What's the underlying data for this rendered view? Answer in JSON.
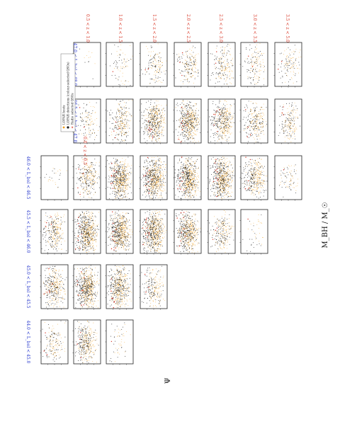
{
  "chart_data": {
    "type": "scatter",
    "title": "",
    "layout": "grid of scatter panels, rows by redshift bin, columns by bolometric luminosity bin; whole figure rotated 90 degrees",
    "ylabel": "M_BH / M_☉",
    "xlabel": "Ψ",
    "redshift_bins": [
      "0.0 < z < 0.5",
      "0.5 < z < 1.0",
      "1.0 < z < 1.5",
      "1.5 < z < 2.0",
      "2.0 < z < 2.5",
      "2.5 < z < 3.0",
      "3.0 < z < 3.5",
      "3.5 < z < 5.0"
    ],
    "luminosity_bins": [
      "44.0 < L_bol < 45.0",
      "45.0 < L_bol < 45.5",
      "45.5 < L_bol < 46.0",
      "46.0 < L_bol < 46.5",
      "46.5 < L_bol < 47.0",
      "47.0 < L_bol < 48.0"
    ],
    "panels_present": [
      [
        true,
        true,
        true,
        false,
        false,
        false,
        false,
        false
      ],
      [
        true,
        true,
        true,
        true,
        false,
        false,
        false,
        false
      ],
      [
        true,
        true,
        true,
        true,
        true,
        true,
        true,
        false
      ],
      [
        true,
        true,
        true,
        true,
        true,
        true,
        true,
        true
      ],
      [
        false,
        true,
        true,
        true,
        true,
        true,
        true,
        true
      ],
      [
        false,
        true,
        true,
        true,
        true,
        true,
        true,
        true
      ]
    ],
    "point_density": [
      [
        0.25,
        0.55,
        0.08,
        0,
        0,
        0,
        0,
        0
      ],
      [
        0.55,
        1.0,
        0.75,
        0.35,
        0,
        0,
        0,
        0
      ],
      [
        0.45,
        1.0,
        1.0,
        1.0,
        0.85,
        0.35,
        0.06,
        0
      ],
      [
        0.04,
        0.45,
        0.95,
        1.0,
        1.0,
        0.95,
        0.55,
        0.12
      ],
      [
        0,
        0.18,
        0.4,
        0.75,
        0.85,
        0.65,
        0.4,
        0.28
      ],
      [
        0,
        0.02,
        0.12,
        0.22,
        0.3,
        0.3,
        0.22,
        0.18
      ]
    ],
    "series": [
      {
        "name": "LOFAR hosts",
        "color": "#f0a020",
        "marker": "dot"
      },
      {
        "name": "LOFAR detections (colour-selected QSOs)",
        "color": "#222222",
        "marker": "filled-circle"
      },
      {
        "name": "Radio selected QSOs",
        "color": "#d83a2a",
        "marker": "star"
      }
    ],
    "legend_placement": "top-left",
    "grid": false
  },
  "labels": {
    "row": [
      "0.0 < z < 0.5",
      "0.5 < z < 1.0",
      "1.0 < z < 1.5",
      "1.5 < z < 2.0",
      "2.0 < z < 2.5",
      "2.5 < z < 3.0",
      "3.0 < z < 3.5",
      "3.5 < z < 5.0"
    ],
    "col": [
      "44.0 < L_bol < 45.0",
      "45.0 < L_bol < 45.5",
      "45.5 < L_bol < 46.0",
      "46.0 < L_bol < 46.5",
      "46.5 < L_bol < 47.0",
      "47.0 < L_bol < 48.0"
    ],
    "y_axis": "M_BH / M_☉",
    "x_axis": "Ψ",
    "legend": [
      "LOFAR hosts",
      "LOFAR detections (colour-selected QSOs)",
      "Radio selected QSOs"
    ]
  }
}
